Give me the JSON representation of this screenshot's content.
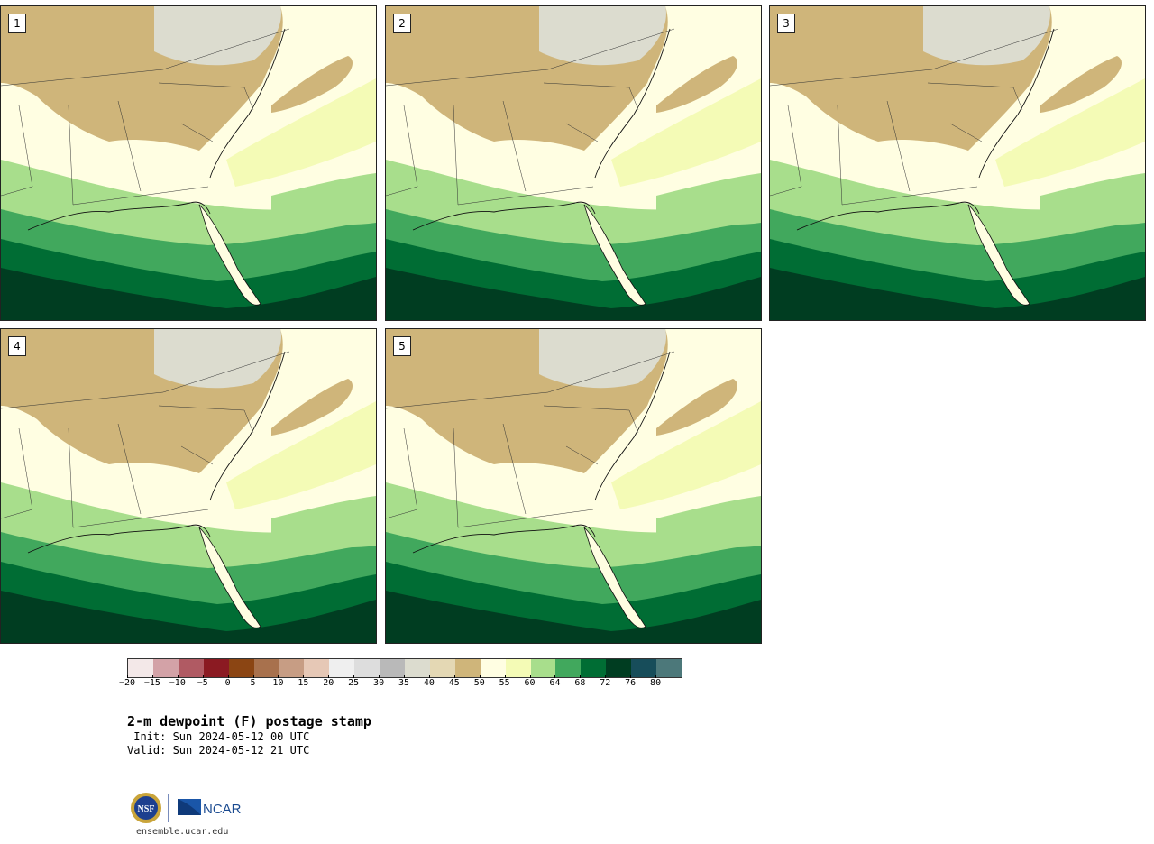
{
  "panels": [
    {
      "label": "1"
    },
    {
      "label": "2"
    },
    {
      "label": "3"
    },
    {
      "label": "4"
    },
    {
      "label": "5"
    }
  ],
  "colorbar": {
    "colors": [
      "#f3e8e8",
      "#d3a2a7",
      "#b05a63",
      "#8b1a22",
      "#8b4513",
      "#a8714d",
      "#c79d84",
      "#e6c8b6",
      "#efefef",
      "#dddddd",
      "#b9b9b9",
      "#dcdccf",
      "#e4d8b4",
      "#cfb57a",
      "#fffee2",
      "#f4fbb6",
      "#a8de8c",
      "#41a85d",
      "#006d34",
      "#003d21",
      "#174d5a",
      "#4c787a"
    ],
    "ticks": [
      "-20",
      "-15",
      "-10",
      "-5",
      "0",
      "5",
      "10",
      "15",
      "20",
      "25",
      "30",
      "35",
      "40",
      "45",
      "50",
      "55",
      "60",
      "64",
      "68",
      "72",
      "76",
      "80"
    ]
  },
  "title": "2-m dewpoint (F) postage stamp",
  "init": " Init: Sun 2024-05-12 00 UTC",
  "valid": "Valid: Sun 2024-05-12 21 UTC",
  "logo": {
    "nsf_text": "NSF",
    "ncar_text": "NCAR"
  },
  "site": "ensemble.ucar.edu"
}
